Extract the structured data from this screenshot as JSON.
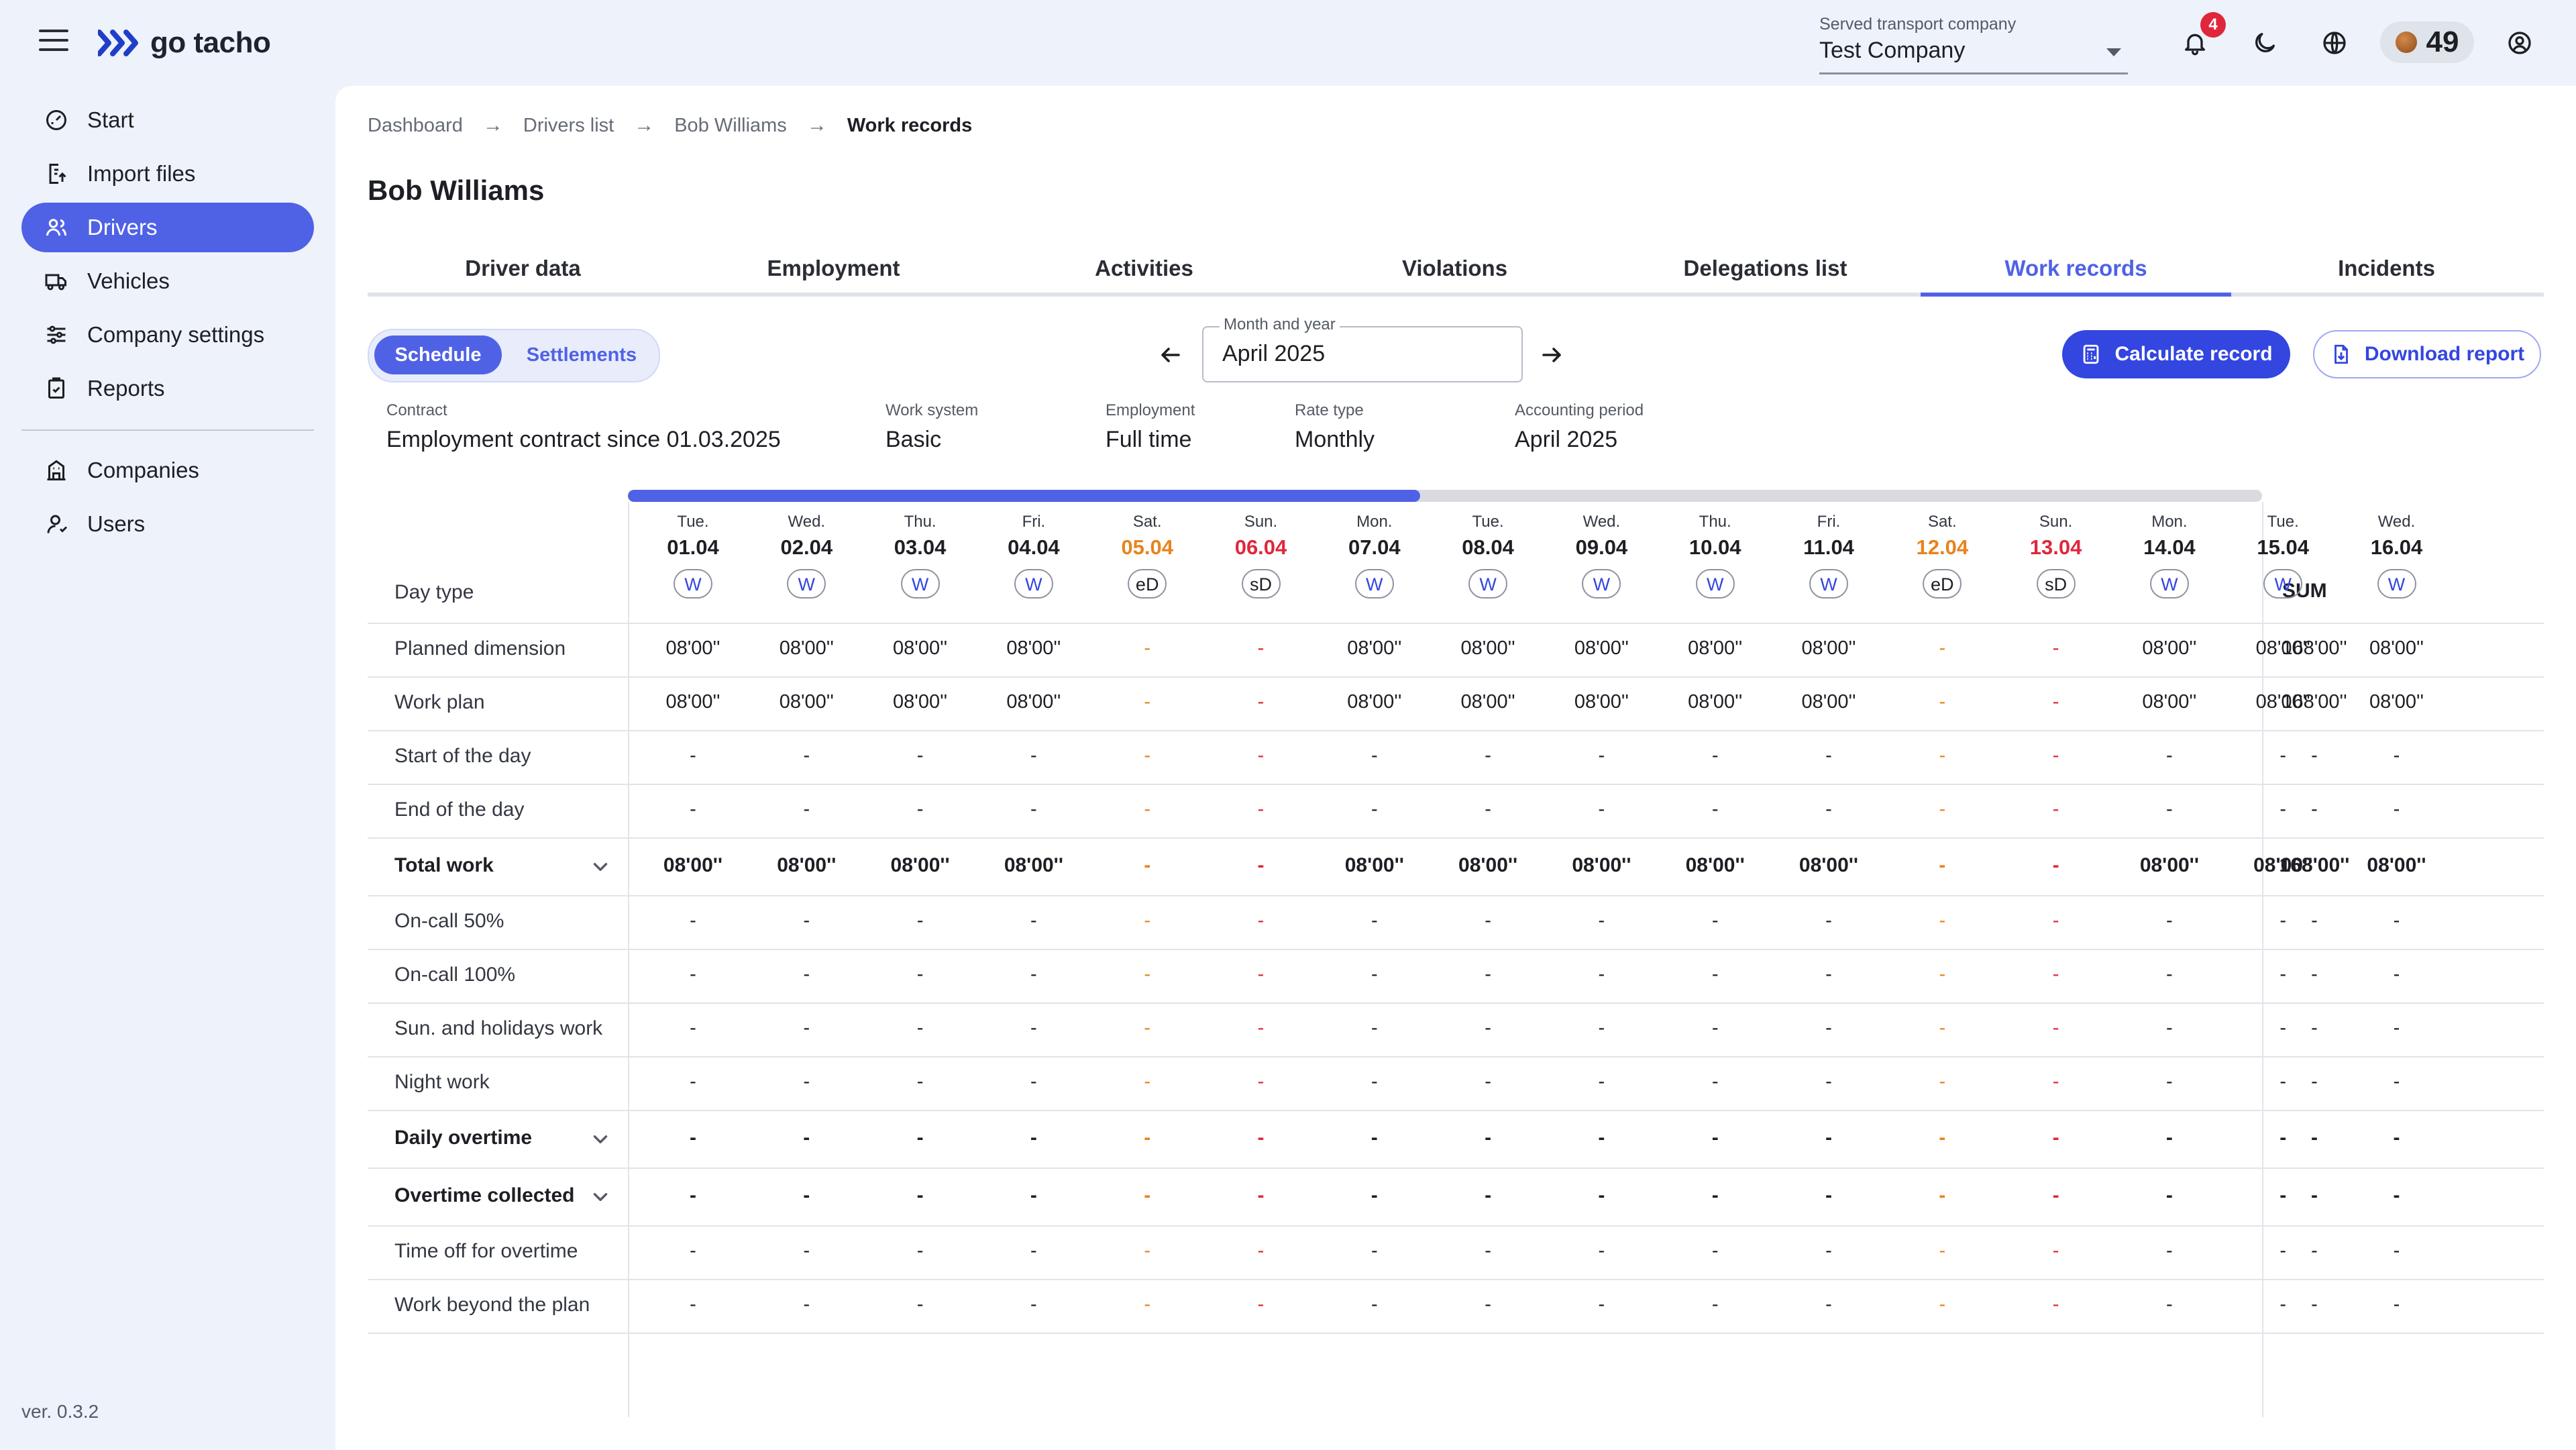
{
  "app": {
    "logo_text": "go tacho"
  },
  "header": {
    "company_label": "Served transport company",
    "company_value": "Test Company",
    "notifications_count": "4",
    "credits": "49"
  },
  "sidebar": {
    "items": [
      {
        "label": "Start",
        "icon": "gauge-icon"
      },
      {
        "label": "Import files",
        "icon": "import-icon"
      },
      {
        "label": "Drivers",
        "icon": "users-icon"
      },
      {
        "label": "Vehicles",
        "icon": "truck-icon"
      },
      {
        "label": "Company settings",
        "icon": "sliders-icon"
      },
      {
        "label": "Reports",
        "icon": "clipboard-icon"
      }
    ],
    "secondary_items": [
      {
        "label": "Companies",
        "icon": "building-icon"
      },
      {
        "label": "Users",
        "icon": "user-icon"
      }
    ],
    "version": "ver. 0.3.2"
  },
  "breadcrumb": {
    "items": [
      "Dashboard",
      "Drivers list",
      "Bob Williams"
    ],
    "current": "Work records"
  },
  "page": {
    "title": "Bob Williams"
  },
  "tabs": [
    "Driver data",
    "Employment",
    "Activities",
    "Violations",
    "Delegations list",
    "Work records",
    "Incidents"
  ],
  "toolbar": {
    "segment": [
      "Schedule",
      "Settlements"
    ],
    "month_label": "Month and year",
    "month_value": "April 2025",
    "calculate_label": "Calculate record",
    "download_label": "Download report"
  },
  "info": [
    {
      "label": "Contract",
      "value": "Employment contract since 01.03.2025"
    },
    {
      "label": "Work system",
      "value": "Basic"
    },
    {
      "label": "Employment",
      "value": "Full time"
    },
    {
      "label": "Rate type",
      "value": "Monthly"
    },
    {
      "label": "Accounting period",
      "value": "April 2025"
    }
  ],
  "table": {
    "scroll_progress": 0.485,
    "day_type_label": "Day type",
    "sum_label": "SUM",
    "days": [
      {
        "name": "Tue.",
        "date": "01.04",
        "type": "W",
        "kind": "work"
      },
      {
        "name": "Wed.",
        "date": "02.04",
        "type": "W",
        "kind": "work"
      },
      {
        "name": "Thu.",
        "date": "03.04",
        "type": "W",
        "kind": "work"
      },
      {
        "name": "Fri.",
        "date": "04.04",
        "type": "W",
        "kind": "work"
      },
      {
        "name": "Sat.",
        "date": "05.04",
        "type": "eD",
        "kind": "sat"
      },
      {
        "name": "Sun.",
        "date": "06.04",
        "type": "sD",
        "kind": "sun"
      },
      {
        "name": "Mon.",
        "date": "07.04",
        "type": "W",
        "kind": "work"
      },
      {
        "name": "Tue.",
        "date": "08.04",
        "type": "W",
        "kind": "work"
      },
      {
        "name": "Wed.",
        "date": "09.04",
        "type": "W",
        "kind": "work"
      },
      {
        "name": "Thu.",
        "date": "10.04",
        "type": "W",
        "kind": "work"
      },
      {
        "name": "Fri.",
        "date": "11.04",
        "type": "W",
        "kind": "work"
      },
      {
        "name": "Sat.",
        "date": "12.04",
        "type": "eD",
        "kind": "sat"
      },
      {
        "name": "Sun.",
        "date": "13.04",
        "type": "sD",
        "kind": "sun"
      },
      {
        "name": "Mon.",
        "date": "14.04",
        "type": "W",
        "kind": "work"
      },
      {
        "name": "Tue.",
        "date": "15.04",
        "type": "W",
        "kind": "work"
      },
      {
        "name": "Wed.",
        "date": "16.04",
        "type": "W",
        "kind": "work"
      }
    ],
    "rows": [
      {
        "label": "Planned dimension",
        "bold": false,
        "expandable": false,
        "values": [
          "08'00''",
          "08'00''",
          "08'00''",
          "08'00''",
          "-",
          "-",
          "08'00''",
          "08'00''",
          "08'00''",
          "08'00''",
          "08'00''",
          "-",
          "-",
          "08'00''",
          "08'00''",
          "08'00''"
        ],
        "sum": "168'00''"
      },
      {
        "label": "Work plan",
        "bold": false,
        "expandable": false,
        "values": [
          "08'00''",
          "08'00''",
          "08'00''",
          "08'00''",
          "-",
          "-",
          "08'00''",
          "08'00''",
          "08'00''",
          "08'00''",
          "08'00''",
          "-",
          "-",
          "08'00''",
          "08'00''",
          "08'00''"
        ],
        "sum": "168'00''"
      },
      {
        "label": "Start of the day",
        "bold": false,
        "expandable": false,
        "values": [
          "-",
          "-",
          "-",
          "-",
          "-",
          "-",
          "-",
          "-",
          "-",
          "-",
          "-",
          "-",
          "-",
          "-",
          "-",
          "-"
        ],
        "sum": "-"
      },
      {
        "label": "End of the day",
        "bold": false,
        "expandable": false,
        "values": [
          "-",
          "-",
          "-",
          "-",
          "-",
          "-",
          "-",
          "-",
          "-",
          "-",
          "-",
          "-",
          "-",
          "-",
          "-",
          "-"
        ],
        "sum": "-"
      },
      {
        "label": "Total work",
        "bold": true,
        "expandable": true,
        "values": [
          "08'00''",
          "08'00''",
          "08'00''",
          "08'00''",
          "-",
          "-",
          "08'00''",
          "08'00''",
          "08'00''",
          "08'00''",
          "08'00''",
          "-",
          "-",
          "08'00''",
          "08'00''",
          "08'00''"
        ],
        "sum": "168'00''"
      },
      {
        "label": "On-call 50%",
        "bold": false,
        "expandable": false,
        "values": [
          "-",
          "-",
          "-",
          "-",
          "-",
          "-",
          "-",
          "-",
          "-",
          "-",
          "-",
          "-",
          "-",
          "-",
          "-",
          "-"
        ],
        "sum": "-"
      },
      {
        "label": "On-call 100%",
        "bold": false,
        "expandable": false,
        "values": [
          "-",
          "-",
          "-",
          "-",
          "-",
          "-",
          "-",
          "-",
          "-",
          "-",
          "-",
          "-",
          "-",
          "-",
          "-",
          "-"
        ],
        "sum": "-"
      },
      {
        "label": "Sun. and holidays work",
        "bold": false,
        "expandable": false,
        "values": [
          "-",
          "-",
          "-",
          "-",
          "-",
          "-",
          "-",
          "-",
          "-",
          "-",
          "-",
          "-",
          "-",
          "-",
          "-",
          "-"
        ],
        "sum": "-"
      },
      {
        "label": "Night work",
        "bold": false,
        "expandable": false,
        "values": [
          "-",
          "-",
          "-",
          "-",
          "-",
          "-",
          "-",
          "-",
          "-",
          "-",
          "-",
          "-",
          "-",
          "-",
          "-",
          "-"
        ],
        "sum": "-"
      },
      {
        "label": "Daily overtime",
        "bold": true,
        "expandable": true,
        "values": [
          "-",
          "-",
          "-",
          "-",
          "-",
          "-",
          "-",
          "-",
          "-",
          "-",
          "-",
          "-",
          "-",
          "-",
          "-",
          "-"
        ],
        "sum": "-"
      },
      {
        "label": "Overtime collected",
        "bold": true,
        "expandable": true,
        "values": [
          "-",
          "-",
          "-",
          "-",
          "-",
          "-",
          "-",
          "-",
          "-",
          "-",
          "-",
          "-",
          "-",
          "-",
          "-",
          "-"
        ],
        "sum": "-"
      },
      {
        "label": "Time off for overtime",
        "bold": false,
        "expandable": false,
        "values": [
          "-",
          "-",
          "-",
          "-",
          "-",
          "-",
          "-",
          "-",
          "-",
          "-",
          "-",
          "-",
          "-",
          "-",
          "-",
          "-"
        ],
        "sum": "-"
      },
      {
        "label": "Work beyond the plan",
        "bold": false,
        "expandable": false,
        "values": [
          "-",
          "-",
          "-",
          "-",
          "-",
          "-",
          "-",
          "-",
          "-",
          "-",
          "-",
          "-",
          "-",
          "-",
          "-",
          "-"
        ],
        "sum": "-"
      }
    ]
  }
}
